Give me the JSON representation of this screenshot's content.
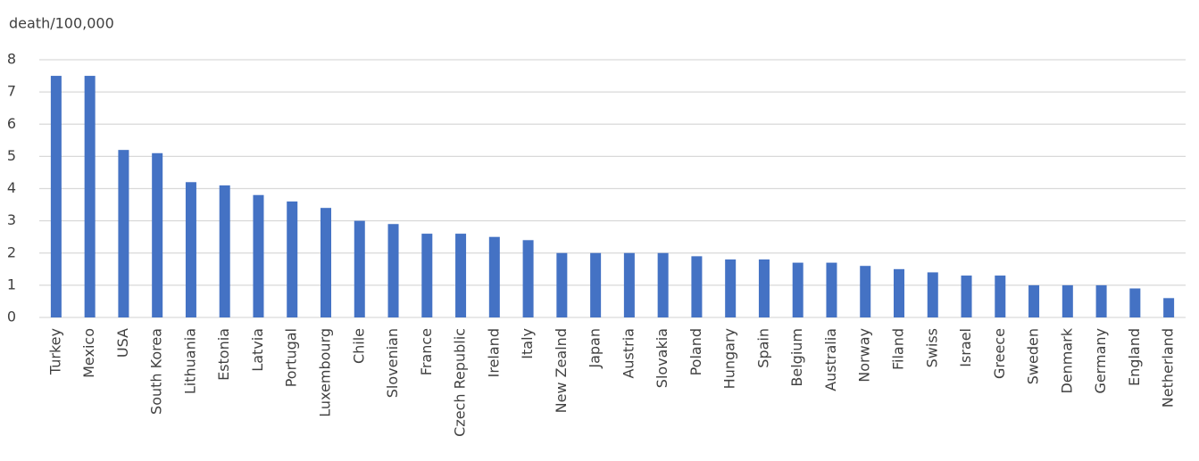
{
  "chart_data": {
    "type": "bar",
    "y_label": "death/100,000",
    "categories": [
      "Turkey",
      "Mexico",
      "USA",
      "South Korea",
      "Lithuania",
      "Estonia",
      "Latvia",
      "Portugal",
      "Luxembourg",
      "Chile",
      "Slovenian",
      "France",
      "Czech Republic",
      "Ireland",
      "Italy",
      "New Zealnd",
      "Japan",
      "Austria",
      "Slovakia",
      "Poland",
      "Hungary",
      "Spain",
      "Belgium",
      "Australia",
      "Norway",
      "Filand",
      "Swiss",
      "Israel",
      "Greece",
      "Sweden",
      "Denmark",
      "Germany",
      "England",
      "Netherland"
    ],
    "values": [
      7.5,
      7.5,
      5.2,
      5.1,
      4.2,
      4.1,
      3.8,
      3.6,
      3.4,
      3.0,
      2.9,
      2.6,
      2.6,
      2.5,
      2.4,
      2.0,
      2.0,
      2.0,
      2.0,
      1.9,
      1.8,
      1.8,
      1.7,
      1.7,
      1.6,
      1.5,
      1.4,
      1.3,
      1.3,
      1.0,
      1.0,
      1.0,
      0.9,
      0.6
    ],
    "color": "#4472c4",
    "ylim": [
      0,
      8
    ],
    "yticks": [
      0,
      1,
      2,
      3,
      4,
      5,
      6,
      7,
      8
    ],
    "grid": true
  }
}
